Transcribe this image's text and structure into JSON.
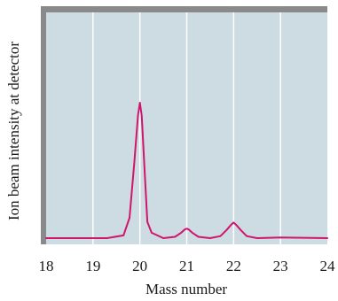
{
  "chart_data": {
    "type": "line",
    "title": "",
    "xlabel": "Mass number",
    "ylabel": "Ion beam intensity at detector",
    "xlim": [
      18,
      24
    ],
    "x_ticks": [
      "18",
      "19",
      "20",
      "21",
      "22",
      "23",
      "24"
    ],
    "grid": true,
    "series": [
      {
        "values": [
          {
            "x": 18.0,
            "y": 0.0
          },
          {
            "x": 19.3,
            "y": 0.0
          },
          {
            "x": 19.65,
            "y": 0.02
          },
          {
            "x": 19.78,
            "y": 0.15
          },
          {
            "x": 19.88,
            "y": 0.55
          },
          {
            "x": 19.96,
            "y": 0.91
          },
          {
            "x": 20.0,
            "y": 1.0
          },
          {
            "x": 20.04,
            "y": 0.9
          },
          {
            "x": 20.1,
            "y": 0.5
          },
          {
            "x": 20.16,
            "y": 0.12
          },
          {
            "x": 20.25,
            "y": 0.04
          },
          {
            "x": 20.5,
            "y": 0.0
          },
          {
            "x": 20.75,
            "y": 0.01
          },
          {
            "x": 20.88,
            "y": 0.04
          },
          {
            "x": 20.96,
            "y": 0.065
          },
          {
            "x": 21.0,
            "y": 0.07
          },
          {
            "x": 21.04,
            "y": 0.065
          },
          {
            "x": 21.12,
            "y": 0.04
          },
          {
            "x": 21.25,
            "y": 0.01
          },
          {
            "x": 21.5,
            "y": 0.0
          },
          {
            "x": 21.72,
            "y": 0.015
          },
          {
            "x": 21.85,
            "y": 0.06
          },
          {
            "x": 21.95,
            "y": 0.1
          },
          {
            "x": 22.0,
            "y": 0.115
          },
          {
            "x": 22.05,
            "y": 0.1
          },
          {
            "x": 22.15,
            "y": 0.06
          },
          {
            "x": 22.28,
            "y": 0.015
          },
          {
            "x": 22.5,
            "y": 0.0
          },
          {
            "x": 23.0,
            "y": 0.005
          },
          {
            "x": 24.0,
            "y": 0.0
          }
        ]
      }
    ]
  },
  "colors": {
    "plot_background": "#cddbe2",
    "gridline": "#ffffff",
    "line": "#d0156e",
    "frame_shadow": "#8a8a8a"
  }
}
